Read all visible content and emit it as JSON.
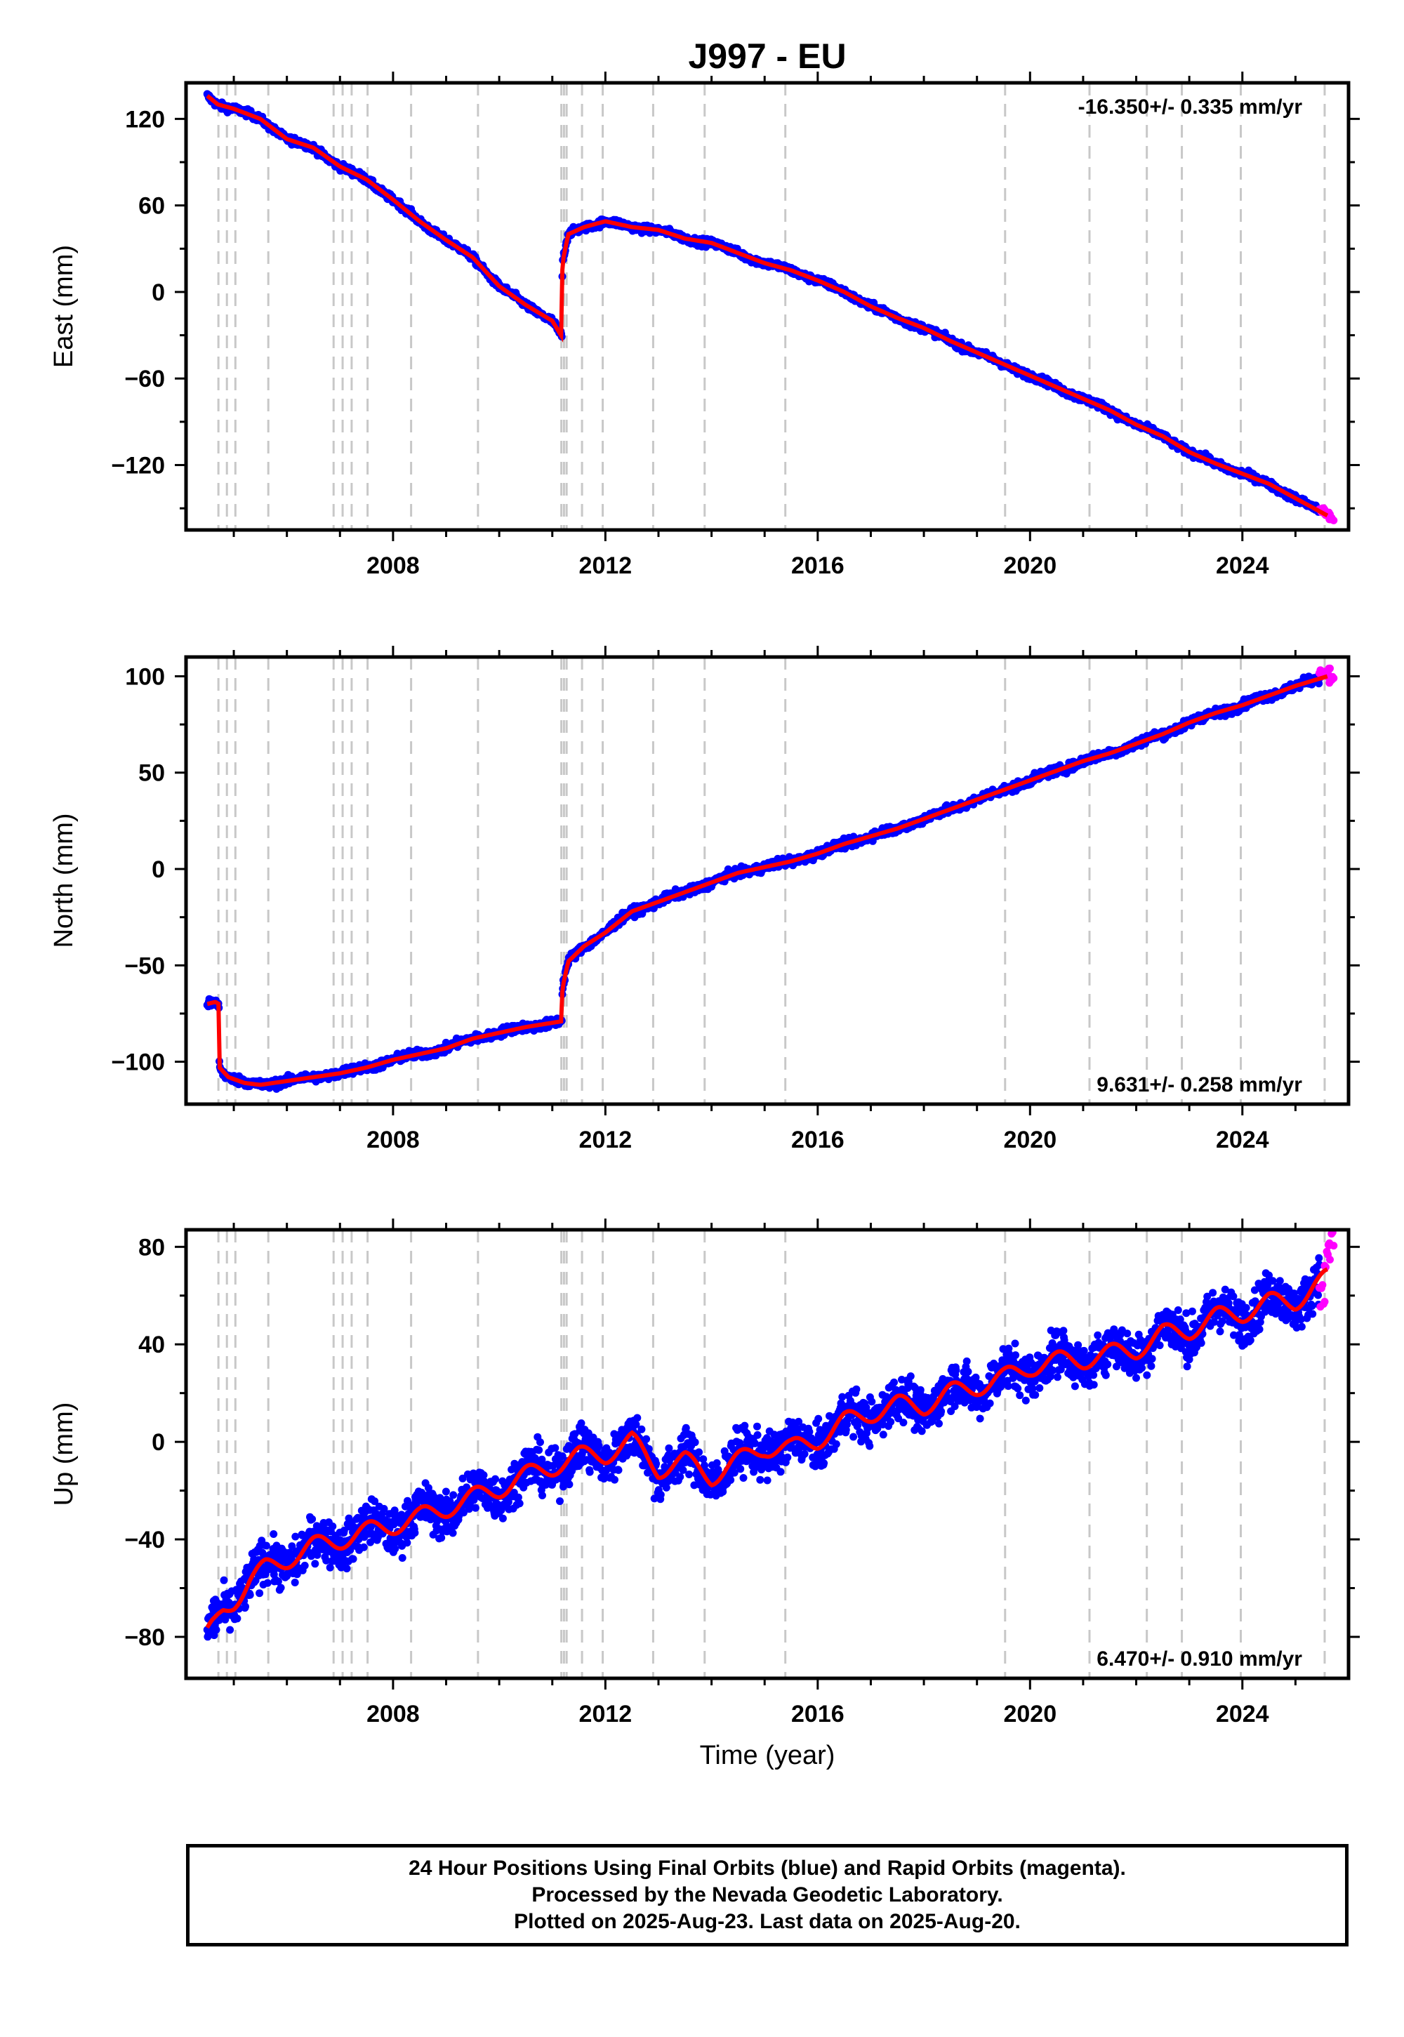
{
  "chart_data": {
    "type": "scatter",
    "title": "J997 - EU",
    "xlabel": "Time (year)",
    "x_ticks": [
      2008,
      2012,
      2016,
      2020,
      2024
    ],
    "xlim": [
      2004.1,
      2026.0
    ],
    "event_lines": [
      2004.71,
      2004.87,
      2005.03,
      2005.65,
      2006.88,
      2007.05,
      2007.22,
      2007.52,
      2008.34,
      2009.6,
      2011.17,
      2011.22,
      2011.27,
      2011.56,
      2011.95,
      2012.9,
      2013.87,
      2015.39,
      2019.53,
      2021.12,
      2022.2,
      2022.86,
      2023.97,
      2025.55
    ],
    "legend": [
      {
        "name": "Final Orbits",
        "color": "#0000ff"
      },
      {
        "name": "Rapid Orbits",
        "color": "#ff00ff"
      }
    ],
    "model_color": "#ff0000",
    "panels": [
      {
        "ylabel": "East (mm)",
        "ylim": [
          -165,
          145
        ],
        "y_ticks": [
          120,
          60,
          0,
          -60,
          -120
        ],
        "rate": "-16.350+/- 0.335 mm/yr",
        "rate_position": "top-right",
        "noise": 1.8,
        "series": {
          "x": [
            2004.5,
            2004.7,
            2005.0,
            2005.5,
            2006.0,
            2006.5,
            2007.0,
            2007.5,
            2008.0,
            2008.5,
            2009.0,
            2009.5,
            2010.0,
            2010.5,
            2011.0,
            2011.18,
            2011.19,
            2011.3,
            2011.6,
            2012.0,
            2012.5,
            2013.0,
            2013.5,
            2014.0,
            2014.5,
            2015.0,
            2015.5,
            2016.0,
            2016.5,
            2017.0,
            2017.5,
            2018.0,
            2018.5,
            2019.0,
            2019.5,
            2020.0,
            2020.5,
            2021.0,
            2021.5,
            2022.0,
            2022.5,
            2023.0,
            2023.5,
            2024.0,
            2024.5,
            2025.0,
            2025.6
          ],
          "y": [
            136,
            130,
            127,
            120,
            106,
            100,
            87,
            78,
            64,
            49,
            36,
            24,
            4,
            -9,
            -20,
            -31,
            20,
            40,
            45,
            49,
            45,
            43,
            37,
            34,
            27,
            20,
            15,
            8,
            0,
            -10,
            -18,
            -25,
            -34,
            -42,
            -50,
            -58,
            -66,
            -74,
            -82,
            -92,
            -100,
            -111,
            -119,
            -126,
            -133,
            -143,
            -155
          ]
        },
        "rapid": {
          "x": [
            2025.45,
            2025.55,
            2025.62
          ],
          "y": [
            -151,
            -154,
            -157
          ]
        }
      },
      {
        "ylabel": "North (mm)",
        "ylim": [
          -122,
          110
        ],
        "y_ticks": [
          100,
          50,
          0,
          -50,
          -100
        ],
        "rate": "9.631+/- 0.258 mm/yr",
        "rate_position": "bottom-right",
        "noise": 1.6,
        "series": {
          "x": [
            2004.5,
            2004.65,
            2004.72,
            2004.73,
            2004.9,
            2005.2,
            2005.5,
            2006.0,
            2006.5,
            2007.0,
            2007.5,
            2008.0,
            2008.5,
            2009.0,
            2009.5,
            2010.0,
            2010.5,
            2011.18,
            2011.19,
            2011.3,
            2011.6,
            2012.0,
            2012.5,
            2013.0,
            2013.5,
            2014.0,
            2014.5,
            2015.0,
            2015.5,
            2016.0,
            2016.5,
            2017.0,
            2017.5,
            2018.0,
            2018.5,
            2019.0,
            2019.5,
            2020.0,
            2020.5,
            2021.0,
            2021.5,
            2022.0,
            2022.5,
            2023.0,
            2023.5,
            2024.0,
            2024.5,
            2025.0,
            2025.6
          ],
          "y": [
            -70,
            -69,
            -70,
            -103,
            -108,
            -111,
            -112,
            -110,
            -108,
            -106,
            -103,
            -99,
            -96,
            -93,
            -88,
            -85,
            -82,
            -79,
            -62,
            -48,
            -40,
            -33,
            -22,
            -17,
            -12,
            -7,
            -2,
            1,
            4,
            8,
            13,
            17,
            21,
            26,
            31,
            36,
            41,
            46,
            51,
            56,
            60,
            65,
            70,
            76,
            81,
            85,
            90,
            95,
            100
          ]
        },
        "rapid": {
          "x": [
            2025.45,
            2025.55,
            2025.62
          ],
          "y": [
            101,
            103,
            98
          ]
        }
      },
      {
        "ylabel": "Up (mm)",
        "ylim": [
          -97,
          87
        ],
        "y_ticks": [
          80,
          40,
          0,
          -40,
          -80
        ],
        "rate": "6.470+/- 0.910 mm/yr",
        "rate_position": "bottom-right",
        "noise": 6.5,
        "series": {
          "x": [
            2004.5,
            2004.65,
            2004.8,
            2005.0,
            2005.3,
            2005.6,
            2006.0,
            2006.5,
            2007.0,
            2007.5,
            2008.0,
            2008.5,
            2009.0,
            2009.5,
            2010.0,
            2010.5,
            2011.0,
            2011.5,
            2012.0,
            2012.5,
            2013.0,
            2013.5,
            2014.0,
            2014.5,
            2015.0,
            2015.5,
            2016.0,
            2016.5,
            2017.0,
            2017.5,
            2018.0,
            2018.5,
            2019.0,
            2019.5,
            2020.0,
            2020.5,
            2021.0,
            2021.5,
            2022.0,
            2022.5,
            2023.0,
            2023.5,
            2024.0,
            2024.5,
            2025.0,
            2025.6
          ],
          "y": [
            -80,
            -75,
            -69,
            -65,
            -57,
            -52,
            -48,
            -43,
            -40,
            -37,
            -34,
            -31,
            -27,
            -23,
            -19,
            -14,
            -10,
            -6,
            -5,
            0,
            -11,
            -8,
            -14,
            -8,
            -2,
            -3,
            1,
            8,
            12,
            15,
            15,
            20,
            23,
            26,
            31,
            33,
            34,
            36,
            38,
            44,
            46,
            51,
            53,
            57,
            58,
            67
          ]
        },
        "rapid": {
          "x": [
            2025.45,
            2025.55,
            2025.62
          ],
          "y": [
            60,
            75,
            83
          ]
        }
      }
    ]
  },
  "footer": {
    "line1": "24 Hour Positions Using Final Orbits (blue) and Rapid Orbits (magenta).",
    "line2": "Processed by the Nevada Geodetic Laboratory.",
    "line3": "Plotted on 2025-Aug-23. Last data on 2025-Aug-20."
  }
}
